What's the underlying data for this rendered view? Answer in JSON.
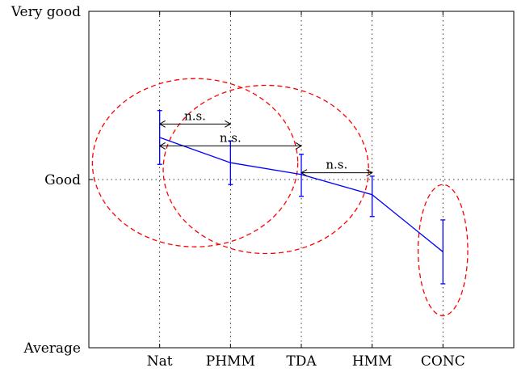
{
  "chart_data": {
    "type": "line",
    "categories": [
      "Nat",
      "PHMM",
      "TDA",
      "HMM",
      "CONC"
    ],
    "y_tick_labels": [
      "Average",
      "Good",
      "Very good"
    ],
    "ylim": [
      1,
      3
    ],
    "grid": true,
    "series": [
      {
        "values": [
          2.25,
          2.1,
          2.03,
          1.91,
          1.57
        ],
        "err_low": [
          2.09,
          1.97,
          1.9,
          1.78,
          1.38
        ],
        "err_high": [
          2.41,
          2.23,
          2.15,
          2.02,
          1.76
        ],
        "color": "#0000ff"
      }
    ],
    "annotations": [
      {
        "text": "n.s.",
        "from": "Nat",
        "to": "PHMM",
        "y": 2.33
      },
      {
        "text": "n.s.",
        "from": "Nat",
        "to": "TDA",
        "y": 2.2
      },
      {
        "text": "n.s.",
        "from": "TDA",
        "to": "HMM",
        "y": 2.04
      }
    ],
    "ellipse_color": "#ff0000",
    "ellipses": [
      {
        "cx": 1.5,
        "cy": 2.1,
        "rx": 1.45,
        "ry": 0.5
      },
      {
        "cx": 2.5,
        "cy": 2.06,
        "rx": 1.45,
        "ry": 0.5
      },
      {
        "cx": 5,
        "cy": 1.58,
        "rx": 0.35,
        "ry": 0.39
      }
    ]
  }
}
